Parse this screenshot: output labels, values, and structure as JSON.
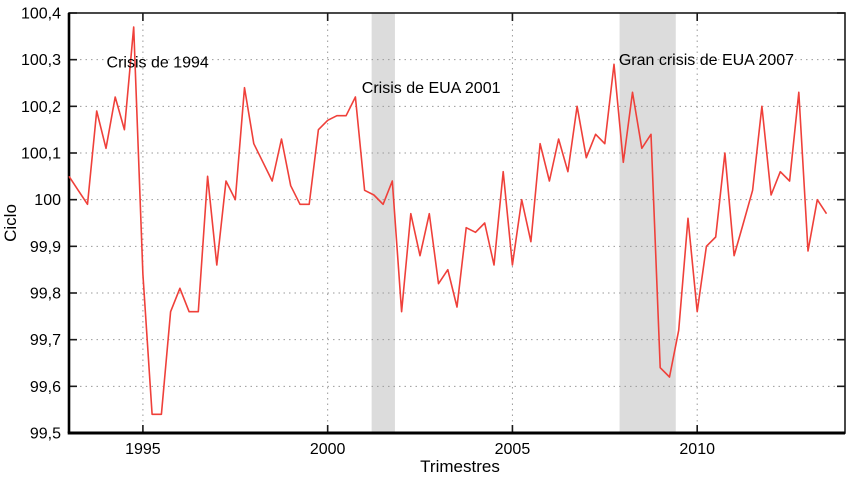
{
  "chart_data": {
    "type": "line",
    "title": "",
    "xlabel": "Trimestres",
    "ylabel": "Ciclo",
    "xlim": [
      1993,
      2014
    ],
    "ylim": [
      99.5,
      100.4
    ],
    "grid": "dotted",
    "legend": "none",
    "x_ticks": [
      {
        "v": 1995,
        "label": "1995"
      },
      {
        "v": 2000,
        "label": "2000"
      },
      {
        "v": 2005,
        "label": "2005"
      },
      {
        "v": 2010,
        "label": "2010"
      }
    ],
    "y_ticks": [
      {
        "v": 99.5,
        "label": "99,5"
      },
      {
        "v": 99.6,
        "label": "99,6"
      },
      {
        "v": 99.7,
        "label": "99,7"
      },
      {
        "v": 99.8,
        "label": "99,8"
      },
      {
        "v": 99.9,
        "label": "99,9"
      },
      {
        "v": 100.0,
        "label": "100"
      },
      {
        "v": 100.1,
        "label": "100,1"
      },
      {
        "v": 100.2,
        "label": "100,2"
      },
      {
        "v": 100.3,
        "label": "100,3"
      },
      {
        "v": 100.4,
        "label": "100,4"
      }
    ],
    "shaded_regions": [
      {
        "name": "recession-2001",
        "x0": 2001.19,
        "x1": 2001.82,
        "color": "#dcdcdc"
      },
      {
        "name": "recession-2008",
        "x0": 2007.9,
        "x1": 2009.42,
        "color": "#dcdcdc"
      }
    ],
    "annotations": [
      {
        "text": "Crisis de 1994",
        "x": 1995.4,
        "y": 100.295
      },
      {
        "text": "Crisis de EUA 2001",
        "x": 2002.8,
        "y": 100.24
      },
      {
        "text": "Gran crisis de EUA 2007",
        "x": 2010.25,
        "y": 100.3
      }
    ],
    "series": [
      {
        "name": "Ciclo",
        "color": "#ef403a",
        "x_start": 1993.0,
        "x_step": 0.25,
        "x_unit": "quarter",
        "values": [
          100.05,
          100.02,
          99.99,
          100.19,
          100.11,
          100.22,
          100.15,
          100.37,
          99.84,
          99.54,
          99.54,
          99.76,
          99.81,
          99.76,
          99.76,
          100.05,
          99.86,
          100.04,
          100.0,
          100.24,
          100.12,
          100.08,
          100.04,
          100.13,
          100.03,
          99.99,
          99.99,
          100.15,
          100.17,
          100.18,
          100.18,
          100.22,
          100.02,
          100.01,
          99.99,
          100.04,
          99.76,
          99.97,
          99.88,
          99.97,
          99.82,
          99.85,
          99.77,
          99.94,
          99.93,
          99.95,
          99.86,
          100.06,
          99.86,
          100.0,
          99.91,
          100.12,
          100.04,
          100.13,
          100.06,
          100.2,
          100.09,
          100.14,
          100.12,
          100.29,
          100.08,
          100.23,
          100.11,
          100.14,
          99.64,
          99.62,
          99.72,
          99.96,
          99.76,
          99.9,
          99.92,
          100.1,
          99.88,
          99.95,
          100.02,
          100.2,
          100.01,
          100.06,
          100.04,
          100.23,
          99.89,
          100.0,
          99.97
        ]
      }
    ],
    "colors": {
      "line": "#ef403a",
      "band": "#dcdcdc",
      "grid": "#9a9a9a",
      "axis": "#1a1a1a",
      "text": "#000000"
    }
  }
}
